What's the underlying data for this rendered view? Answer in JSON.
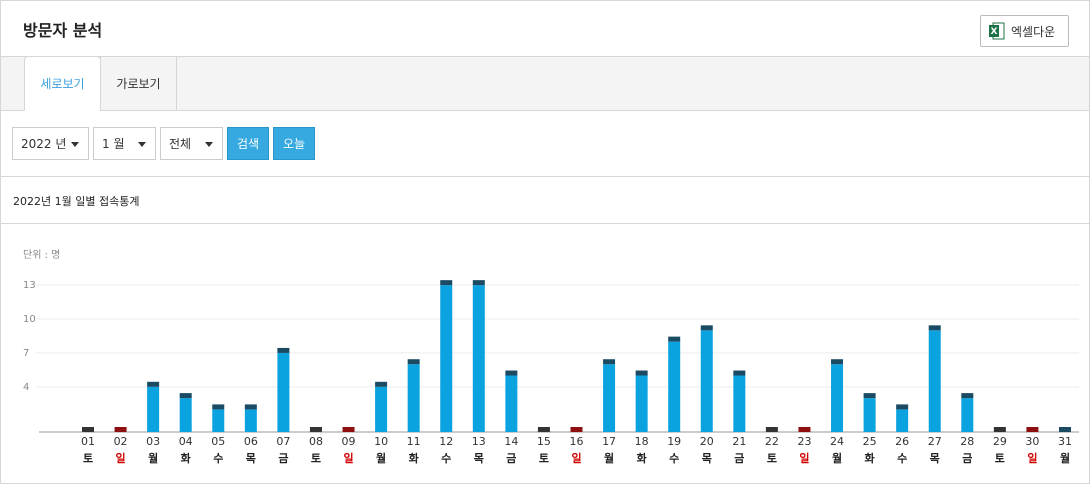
{
  "header": {
    "title": "방문자 분석",
    "excel_button": "엑셀다운"
  },
  "tabs": [
    "세로보기",
    "가로보기"
  ],
  "filters": {
    "year": "2022 년",
    "month": "1 월",
    "scope": "전체",
    "search_button": "검색",
    "today_button": "오늘"
  },
  "section_title": "2022년 1월 일별 접속통계",
  "chart_data": {
    "type": "bar",
    "unit_label": "단위 : 명",
    "categories": [
      "01",
      "02",
      "03",
      "04",
      "05",
      "06",
      "07",
      "08",
      "09",
      "10",
      "11",
      "12",
      "13",
      "14",
      "15",
      "16",
      "17",
      "18",
      "19",
      "20",
      "21",
      "22",
      "23",
      "24",
      "25",
      "26",
      "27",
      "28",
      "29",
      "30",
      "31"
    ],
    "weekdays": [
      "토",
      "일",
      "월",
      "화",
      "수",
      "목",
      "금",
      "토",
      "일",
      "월",
      "화",
      "수",
      "목",
      "금",
      "토",
      "일",
      "월",
      "화",
      "수",
      "목",
      "금",
      "토",
      "일",
      "월",
      "화",
      "수",
      "목",
      "금",
      "토",
      "일",
      "월"
    ],
    "values": [
      0,
      0,
      4,
      3,
      2,
      2,
      7,
      0,
      0,
      4,
      6,
      13,
      13,
      5,
      0,
      0,
      6,
      5,
      8,
      9,
      5,
      0,
      0,
      6,
      3,
      2,
      9,
      3,
      0,
      0,
      0
    ],
    "color": "#0ba2e0",
    "cap_colors": [
      "#333333",
      "#8e0f0f",
      "#1b4a63",
      "#1b4a63",
      "#1b4a63",
      "#1b4a63",
      "#1b4a63",
      "#333333",
      "#8e0f0f",
      "#1b4a63",
      "#1b4a63",
      "#1b4a63",
      "#1b4a63",
      "#1b4a63",
      "#333333",
      "#8e0f0f",
      "#1b4a63",
      "#1b4a63",
      "#1b4a63",
      "#1b4a63",
      "#1b4a63",
      "#333333",
      "#8e0f0f",
      "#1b4a63",
      "#1b4a63",
      "#1b4a63",
      "#1b4a63",
      "#1b4a63",
      "#333333",
      "#8e0f0f",
      "#1b4a63"
    ],
    "weekday_label_colors": [
      "#222222",
      "#d00000",
      "#222222",
      "#222222",
      "#222222",
      "#222222",
      "#222222",
      "#222222",
      "#d00000",
      "#222222",
      "#222222",
      "#222222",
      "#222222",
      "#222222",
      "#222222",
      "#d00000",
      "#222222",
      "#222222",
      "#222222",
      "#222222",
      "#222222",
      "#222222",
      "#d00000",
      "#222222",
      "#222222",
      "#222222",
      "#222222",
      "#222222",
      "#222222",
      "#d00000",
      "#222222"
    ],
    "ylim": [
      0,
      13.5
    ],
    "yticks": [
      4,
      7,
      10,
      13
    ],
    "grid": true
  }
}
